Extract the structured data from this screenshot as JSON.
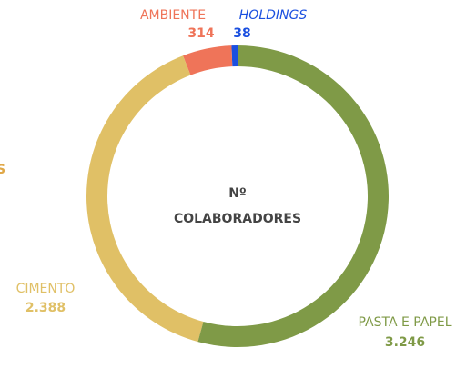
{
  "chart_data": {
    "type": "donut",
    "center_text": [
      "Nº",
      "COLABORADORES"
    ],
    "categories": [
      "PASTA E PAPEL",
      "CIMENTO",
      "AMBIENTE",
      "HOLDINGS"
    ],
    "values": [
      3246,
      2388,
      314,
      38
    ],
    "value_labels": [
      "3.246",
      "2.388",
      "314",
      "38"
    ],
    "colors": [
      "#7f9a47",
      "#e0c066",
      "#ef7459",
      "#1a4fe0"
    ],
    "annotations": [
      "S"
    ]
  }
}
